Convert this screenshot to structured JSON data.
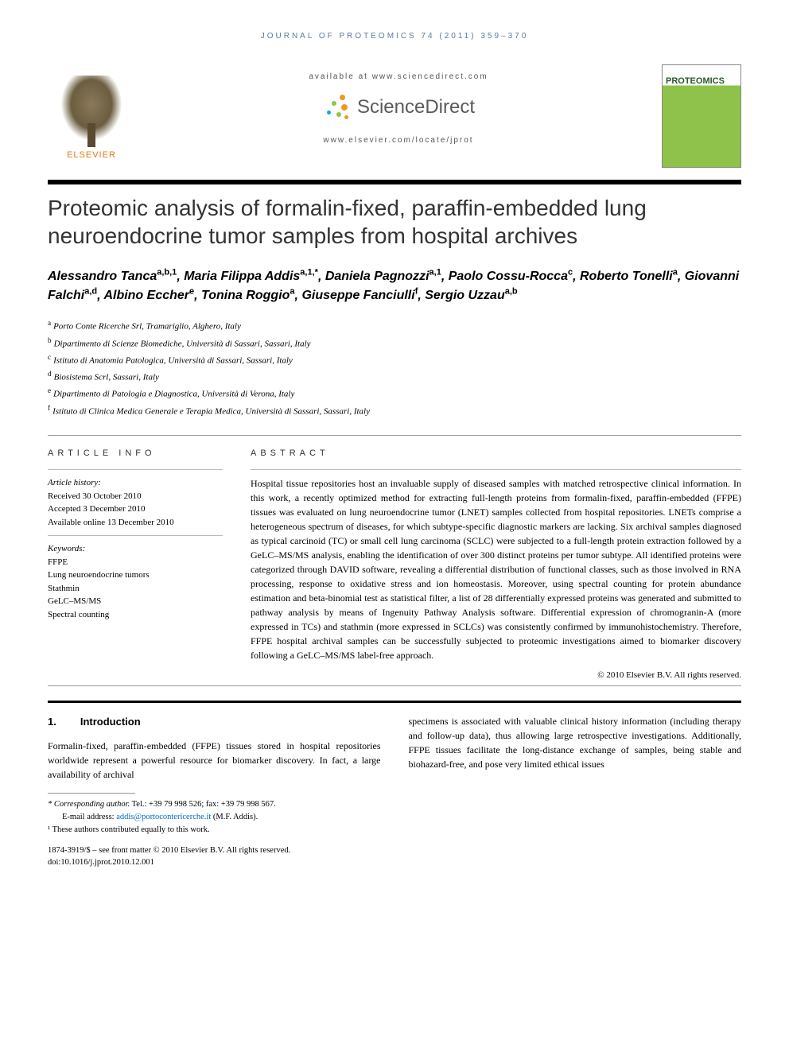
{
  "running_header": "JOURNAL OF PROTEOMICS 74 (2011) 359–370",
  "header": {
    "available_at": "available at www.sciencedirect.com",
    "sciencedirect": "ScienceDirect",
    "locate": "www.elsevier.com/locate/jprot",
    "elsevier": "ELSEVIER",
    "journal_cover_name": "PROTEOMICS"
  },
  "title": "Proteomic analysis of formalin-fixed, paraffin-embedded lung neuroendocrine tumor samples from hospital archives",
  "authors_html_parts": [
    {
      "name": "Alessandro Tanca",
      "sup": "a,b,1"
    },
    {
      "name": "Maria Filippa Addis",
      "sup": "a,1,*"
    },
    {
      "name": "Daniela Pagnozzi",
      "sup": "a,1"
    },
    {
      "name": "Paolo Cossu-Rocca",
      "sup": "c"
    },
    {
      "name": "Roberto Tonelli",
      "sup": "a"
    },
    {
      "name": "Giovanni Falchi",
      "sup": "a,d"
    },
    {
      "name": "Albino Eccher",
      "sup": "e"
    },
    {
      "name": "Tonina Roggio",
      "sup": "a"
    },
    {
      "name": "Giuseppe Fanciulli",
      "sup": "f"
    },
    {
      "name": "Sergio Uzzau",
      "sup": "a,b"
    }
  ],
  "affiliations": [
    {
      "key": "a",
      "text": "Porto Conte Ricerche Srl, Tramariglio, Alghero, Italy"
    },
    {
      "key": "b",
      "text": "Dipartimento di Scienze Biomediche, Università di Sassari, Sassari, Italy"
    },
    {
      "key": "c",
      "text": "Istituto di Anatomia Patologica, Università di Sassari, Sassari, Italy"
    },
    {
      "key": "d",
      "text": "Biosistema Scrl, Sassari, Italy"
    },
    {
      "key": "e",
      "text": "Dipartimento di Patologia e Diagnostica, Università di Verona, Italy"
    },
    {
      "key": "f",
      "text": "Istituto di Clinica Medica Generale e Terapia Medica, Università di Sassari, Sassari, Italy"
    }
  ],
  "article_info": {
    "label": "ARTICLE INFO",
    "history_label": "Article history:",
    "received": "Received 30 October 2010",
    "accepted": "Accepted 3 December 2010",
    "online": "Available online 13 December 2010",
    "keywords_label": "Keywords:",
    "keywords": [
      "FFPE",
      "Lung neuroendocrine tumors",
      "Stathmin",
      "GeLC–MS/MS",
      "Spectral counting"
    ]
  },
  "abstract": {
    "label": "ABSTRACT",
    "text": "Hospital tissue repositories host an invaluable supply of diseased samples with matched retrospective clinical information. In this work, a recently optimized method for extracting full-length proteins from formalin-fixed, paraffin-embedded (FFPE) tissues was evaluated on lung neuroendocrine tumor (LNET) samples collected from hospital repositories. LNETs comprise a heterogeneous spectrum of diseases, for which subtype-specific diagnostic markers are lacking. Six archival samples diagnosed as typical carcinoid (TC) or small cell lung carcinoma (SCLC) were subjected to a full-length protein extraction followed by a GeLC–MS/MS analysis, enabling the identification of over 300 distinct proteins per tumor subtype. All identified proteins were categorized through DAVID software, revealing a differential distribution of functional classes, such as those involved in RNA processing, response to oxidative stress and ion homeostasis. Moreover, using spectral counting for protein abundance estimation and beta-binomial test as statistical filter, a list of 28 differentially expressed proteins was generated and submitted to pathway analysis by means of Ingenuity Pathway Analysis software. Differential expression of chromogranin-A (more expressed in TCs) and stathmin (more expressed in SCLCs) was consistently confirmed by immunohistochemistry. Therefore, FFPE hospital archival samples can be successfully subjected to proteomic investigations aimed to biomarker discovery following a GeLC–MS/MS label-free approach.",
    "copyright": "© 2010 Elsevier B.V. All rights reserved."
  },
  "intro": {
    "num": "1.",
    "heading": "Introduction",
    "col1": "Formalin-fixed, paraffin-embedded (FFPE) tissues stored in hospital repositories worldwide represent a powerful resource for biomarker discovery. In fact, a large availability of archival",
    "col2": "specimens is associated with valuable clinical history information (including therapy and follow-up data), thus allowing large retrospective investigations. Additionally, FFPE tissues facilitate the long-distance exchange of samples, being stable and biohazard-free, and pose very limited ethical issues"
  },
  "footnotes": {
    "corr_label": "* Corresponding author.",
    "corr_text": " Tel.: +39 79 998 526; fax: +39 79 998 567.",
    "email_label": "E-mail address: ",
    "email": "addis@portoconterice rche.it",
    "email_display": "addis@portoconterice rche.it",
    "email_actual": "addis@portoconterice rche.it",
    "email_value": "addis@portoconterice rche.it",
    "email_after": " (M.F. Addis).",
    "equal": "¹ These authors contributed equally to this work."
  },
  "bottom": {
    "line1": "1874-3919/$ – see front matter © 2010 Elsevier B.V. All rights reserved.",
    "line2": "doi:10.1016/j.jprot.2010.12.001"
  },
  "colors": {
    "link_blue": "#0066cc",
    "orange": "#e67817",
    "header_blue": "#5b7a9d",
    "sd_orange": "#f7941e",
    "sd_green": "#8dc63f",
    "sd_blue": "#00adef"
  }
}
